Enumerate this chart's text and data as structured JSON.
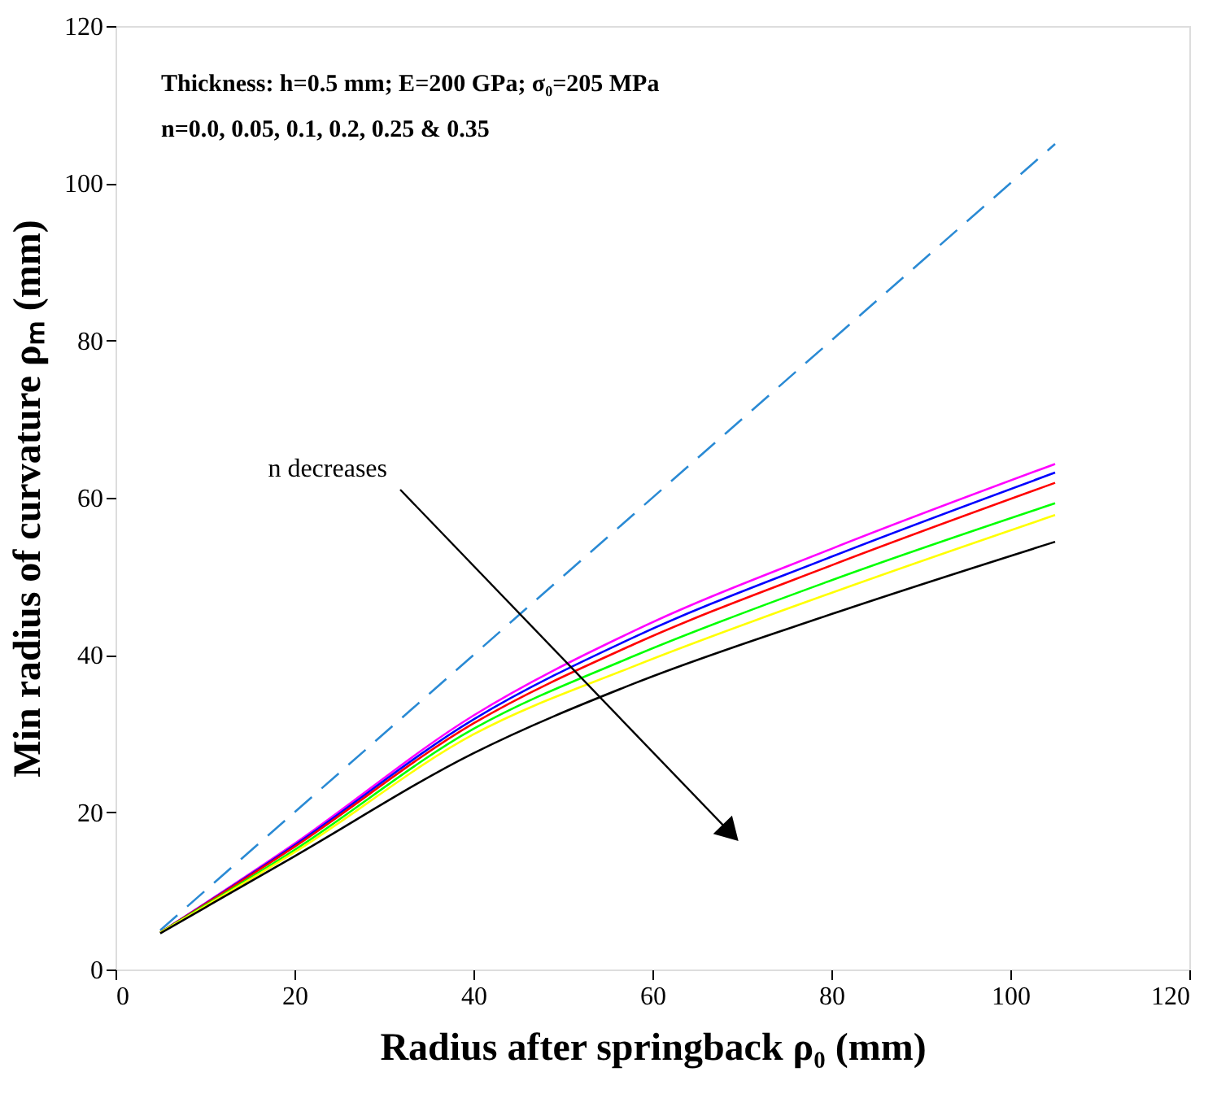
{
  "chart_data": {
    "type": "line",
    "xlabel": "Radius after springback ρ₀ (mm)",
    "ylabel": "Min radius of curvature ρₘ (mm)",
    "x": [
      5,
      20,
      40,
      58,
      80,
      105
    ],
    "series": [
      {
        "color": "#2a8ad4",
        "line_style": "dashed",
        "x": [
          5,
          105
        ],
        "values": [
          5,
          105
        ]
      },
      {
        "color": "#ff00ff",
        "values": [
          4.7,
          16.0,
          32.3,
          43.1,
          53.5,
          64.3
        ]
      },
      {
        "color": "#0000ff",
        "values": [
          4.7,
          15.8,
          31.8,
          42.3,
          52.5,
          63.2
        ]
      },
      {
        "color": "#ff0000",
        "values": [
          4.7,
          15.6,
          31.3,
          41.4,
          51.4,
          61.9
        ]
      },
      {
        "color": "#00ff00",
        "values": [
          4.7,
          15.2,
          30.6,
          39.9,
          49.5,
          59.3
        ]
      },
      {
        "color": "#ffff00",
        "values": [
          4.7,
          14.9,
          29.9,
          38.6,
          47.9,
          57.8
        ]
      },
      {
        "color": "#000000",
        "values": [
          4.6,
          14.4,
          27.5,
          36.4,
          45.2,
          54.4
        ]
      }
    ],
    "annotations": [
      "Thickness: h=0.5 mm; E=200 GPa; σ₀=205 MPa",
      "n=0.0, 0.05, 0.1, 0.2, 0.25 & 0.35",
      "n decreases"
    ],
    "xlim": [
      0,
      120
    ],
    "xticks": [
      0,
      20,
      40,
      60,
      80,
      100,
      120
    ],
    "ylim": [
      0,
      120
    ],
    "yticks": [
      0,
      20,
      40,
      60,
      80,
      100,
      120
    ],
    "grid": false,
    "marker": "none",
    "line_style": "solid"
  }
}
